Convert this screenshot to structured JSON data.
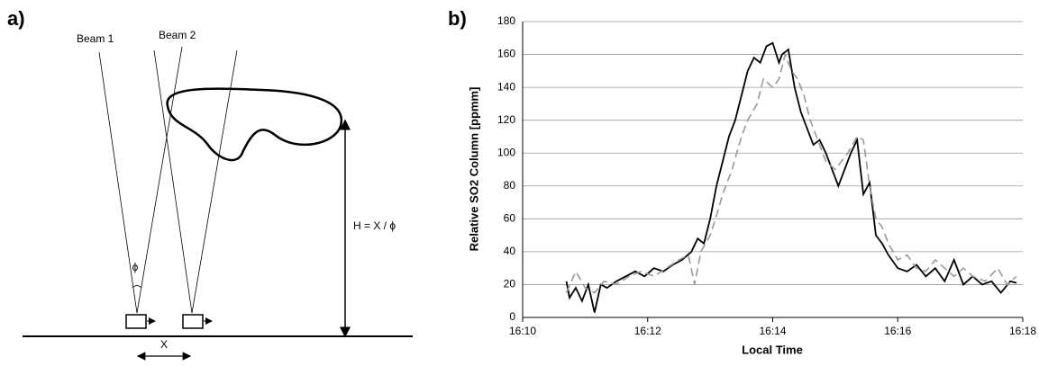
{
  "diagram": {
    "panel_label": "a)",
    "beam_1": "Beam 1",
    "beam_2": "Beam 2",
    "angle": "ϕ",
    "height": "H = X / ϕ",
    "distance": "X"
  },
  "chart_data": {
    "type": "line",
    "panel_label": "b)",
    "x_label": "Local Time",
    "y_label": "Relative SO2 Column [ppmm]",
    "xlim": [
      10,
      18
    ],
    "xticks": [
      {
        "value": 10,
        "label": "16:10"
      },
      {
        "value": 12,
        "label": "16:12"
      },
      {
        "value": 14,
        "label": "16:14"
      },
      {
        "value": 16,
        "label": "16:16"
      },
      {
        "value": 18,
        "label": "16:18"
      }
    ],
    "ylim": [
      0,
      180
    ],
    "yticks": [
      0,
      20,
      40,
      60,
      80,
      100,
      120,
      140,
      160,
      180
    ],
    "grid": true,
    "series": [
      {
        "color": "#000000",
        "dash": false,
        "x": [
          10.7,
          10.75,
          10.85,
          10.95,
          11.05,
          11.15,
          11.25,
          11.35,
          11.5,
          11.65,
          11.8,
          11.95,
          12.1,
          12.25,
          12.4,
          12.55,
          12.7,
          12.8,
          12.9,
          13.0,
          13.1,
          13.2,
          13.3,
          13.4,
          13.5,
          13.6,
          13.7,
          13.8,
          13.9,
          14.0,
          14.1,
          14.15,
          14.25,
          14.35,
          14.45,
          14.55,
          14.65,
          14.75,
          14.85,
          14.95,
          15.05,
          15.15,
          15.25,
          15.35,
          15.45,
          15.55,
          15.65,
          15.75,
          15.85,
          16.0,
          16.15,
          16.3,
          16.45,
          16.6,
          16.75,
          16.9,
          17.05,
          17.2,
          17.35,
          17.5,
          17.65,
          17.8,
          17.9
        ],
        "values": [
          22,
          12,
          18,
          10,
          20,
          3,
          20,
          18,
          22,
          25,
          28,
          25,
          30,
          28,
          32,
          35,
          40,
          48,
          45,
          60,
          80,
          95,
          110,
          120,
          135,
          150,
          158,
          155,
          165,
          167,
          155,
          160,
          163,
          140,
          125,
          115,
          105,
          108,
          100,
          90,
          80,
          90,
          100,
          108,
          75,
          82,
          50,
          45,
          38,
          30,
          28,
          32,
          25,
          30,
          22,
          35,
          20,
          25,
          20,
          22,
          15,
          22,
          21
        ]
      },
      {
        "color": "#999999",
        "dash": true,
        "x": [
          10.7,
          10.85,
          11.0,
          11.15,
          11.3,
          11.5,
          11.7,
          11.9,
          12.1,
          12.3,
          12.5,
          12.65,
          12.75,
          12.85,
          13.0,
          13.1,
          13.2,
          13.35,
          13.5,
          13.6,
          13.75,
          13.85,
          14.0,
          14.1,
          14.2,
          14.3,
          14.4,
          14.5,
          14.6,
          14.7,
          14.85,
          15.0,
          15.1,
          15.2,
          15.35,
          15.45,
          15.55,
          15.65,
          15.75,
          15.85,
          16.0,
          16.15,
          16.3,
          16.45,
          16.6,
          16.75,
          16.9,
          17.05,
          17.2,
          17.4,
          17.6,
          17.75,
          17.9
        ],
        "values": [
          15,
          28,
          18,
          15,
          22,
          20,
          25,
          28,
          25,
          30,
          35,
          38,
          20,
          40,
          50,
          62,
          75,
          90,
          110,
          120,
          130,
          145,
          140,
          145,
          160,
          150,
          145,
          135,
          120,
          110,
          95,
          90,
          95,
          100,
          110,
          108,
          80,
          60,
          55,
          45,
          35,
          38,
          30,
          28,
          35,
          30,
          25,
          30,
          25,
          22,
          30,
          20,
          25
        ]
      }
    ]
  }
}
